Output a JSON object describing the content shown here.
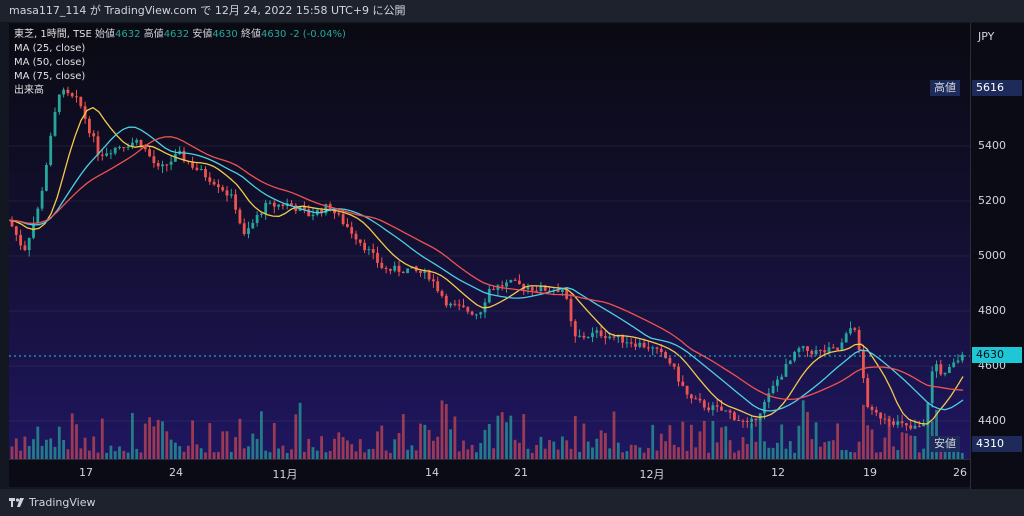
{
  "header": {
    "text": "masa117_114 が TradingView.com で 12月 24, 2022 15:58 UTC+9 に公開"
  },
  "legend": {
    "symbol": "東芝, 1時間, TSE",
    "open_label": "始値",
    "open": "4632",
    "high_label": "高値",
    "high": "4632",
    "low_label": "安値",
    "low": "4630",
    "close_label": "終値",
    "close": "4630",
    "change": "-2 (-0.04%)",
    "ma25": "MA (25, close)",
    "ma50": "MA (50, close)",
    "ma75": "MA (75, close)",
    "volume": "出来高"
  },
  "price_axis": {
    "currency": "JPY",
    "ticks": [
      "5400",
      "5200",
      "5000",
      "4800",
      "4600",
      "4400"
    ],
    "high_tag_label": "高値",
    "high_tag_value": "5616",
    "low_tag_label": "安値",
    "low_tag_value": "4310",
    "last_price": "4630"
  },
  "time_axis": {
    "ticks": [
      "17",
      "24",
      "11月",
      "14",
      "21",
      "12月",
      "12",
      "19",
      "26"
    ]
  },
  "footer": {
    "brand": "TradingView"
  },
  "colors": {
    "up": "#26a69a",
    "down": "#ef5350",
    "ma25": "#f2c94c",
    "ma50": "#4dd0e1",
    "ma75": "#ef5350",
    "last_price": "#1ec7d6"
  }
}
